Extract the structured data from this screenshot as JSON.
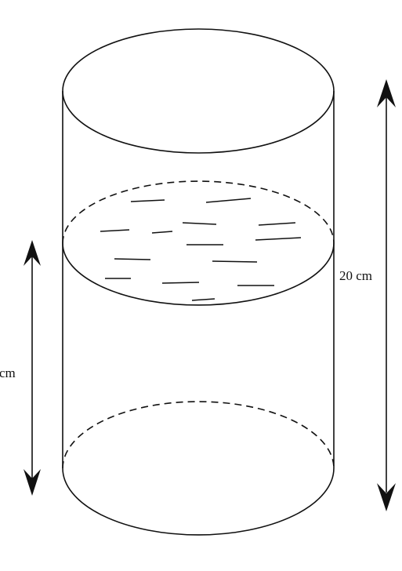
{
  "diagram": {
    "labels": {
      "total_height": "20 cm",
      "water_height": "cm"
    },
    "colors": {
      "stroke": "#111111",
      "background": "#ffffff"
    }
  }
}
